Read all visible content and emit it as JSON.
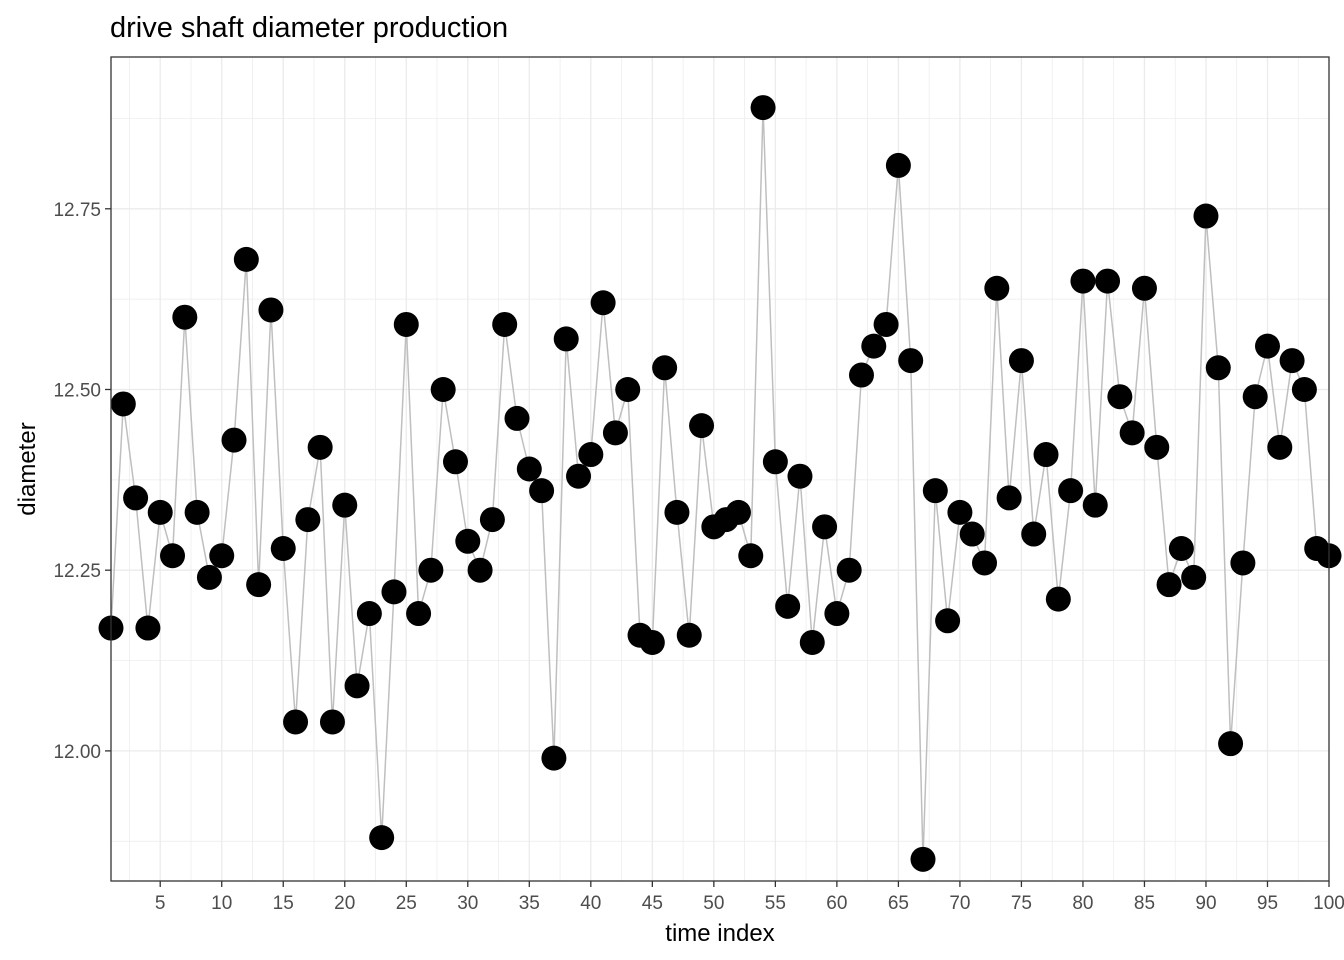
{
  "chart_data": {
    "type": "scatter",
    "title": "drive shaft diameter production",
    "xlabel": "time index",
    "ylabel": "diameter",
    "xlim": [
      1,
      100
    ],
    "ylim": [
      11.82,
      12.96
    ],
    "x_ticks": [
      5,
      10,
      15,
      20,
      25,
      30,
      35,
      40,
      45,
      50,
      55,
      60,
      65,
      70,
      75,
      80,
      85,
      90,
      95,
      100
    ],
    "y_ticks": [
      12.0,
      12.25,
      12.5,
      12.75
    ],
    "y_tick_labels": [
      "12.00",
      "12.25",
      "12.50",
      "12.75"
    ],
    "grid": true,
    "legend": "none",
    "colors": {
      "points": "#000000",
      "line": "#bfbfbf",
      "grid": "#ebebeb",
      "panel_border": "#333333"
    },
    "series": [
      {
        "x": [
          1,
          2,
          3,
          4,
          5,
          6,
          7,
          8,
          9,
          10,
          11,
          12,
          13,
          14,
          15,
          16,
          17,
          18,
          19,
          20,
          21,
          22,
          23,
          24,
          25,
          26,
          27,
          28,
          29,
          30,
          31,
          32,
          33,
          34,
          35,
          36,
          37,
          38,
          39,
          40,
          41,
          42,
          43,
          44,
          45,
          46,
          47,
          48,
          49,
          50,
          51,
          52,
          53,
          54,
          55,
          56,
          57,
          58,
          59,
          60,
          61,
          62,
          63,
          64,
          65,
          66,
          67,
          68,
          69,
          70,
          71,
          72,
          73,
          74,
          75,
          76,
          77,
          78,
          79,
          80,
          81,
          82,
          83,
          84,
          85,
          86,
          87,
          88,
          89,
          90,
          91,
          92,
          93,
          94,
          95,
          96,
          97,
          98,
          99,
          100
        ],
        "values": [
          12.17,
          12.48,
          12.35,
          12.17,
          12.33,
          12.27,
          12.6,
          12.33,
          12.24,
          12.27,
          12.43,
          12.68,
          12.23,
          12.61,
          12.28,
          12.04,
          12.32,
          12.42,
          12.04,
          12.34,
          12.09,
          12.19,
          11.88,
          12.22,
          12.59,
          12.19,
          12.25,
          12.5,
          12.4,
          12.29,
          12.25,
          12.32,
          12.59,
          12.46,
          12.39,
          12.36,
          11.99,
          12.57,
          12.38,
          12.41,
          12.62,
          12.44,
          12.5,
          12.16,
          12.15,
          12.53,
          12.33,
          12.16,
          12.45,
          12.31,
          12.32,
          12.33,
          12.27,
          12.89,
          12.4,
          12.2,
          12.38,
          12.15,
          12.31,
          12.19,
          12.25,
          12.52,
          12.56,
          12.59,
          12.81,
          12.54,
          11.85,
          12.36,
          12.18,
          12.33,
          12.3,
          12.26,
          12.64,
          12.35,
          12.54,
          12.3,
          12.41,
          12.21,
          12.36,
          12.65,
          12.34,
          12.65,
          12.49,
          12.44,
          12.64,
          12.42,
          12.23,
          12.28,
          12.24,
          12.74,
          12.53,
          12.01,
          12.26,
          12.49,
          12.56,
          12.42,
          12.54,
          12.5,
          12.28,
          12.27
        ]
      }
    ]
  }
}
